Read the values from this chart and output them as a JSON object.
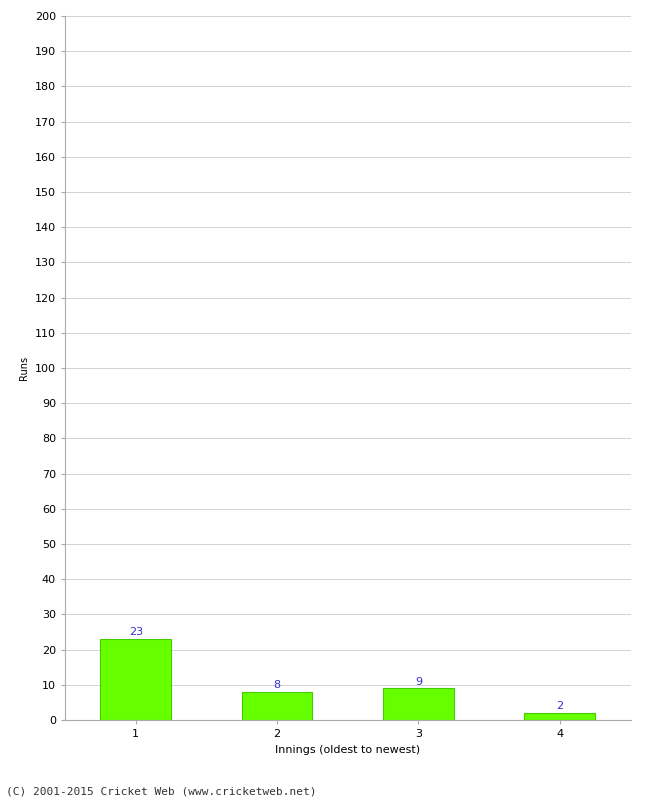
{
  "categories": [
    "1",
    "2",
    "3",
    "4"
  ],
  "values": [
    23,
    8,
    9,
    2
  ],
  "bar_color": "#66ff00",
  "bar_edge_color": "#44cc00",
  "value_label_color": "#3333cc",
  "xlabel": "Innings (oldest to newest)",
  "ylabel": "Runs",
  "ylim": [
    0,
    200
  ],
  "yticks": [
    0,
    10,
    20,
    30,
    40,
    50,
    60,
    70,
    80,
    90,
    100,
    110,
    120,
    130,
    140,
    150,
    160,
    170,
    180,
    190,
    200
  ],
  "footer_text": "(C) 2001-2015 Cricket Web (www.cricketweb.net)",
  "background_color": "#ffffff",
  "grid_color": "#cccccc",
  "value_fontsize": 8,
  "axis_fontsize": 8,
  "ylabel_fontsize": 7,
  "footer_fontsize": 8,
  "bar_width": 0.5
}
